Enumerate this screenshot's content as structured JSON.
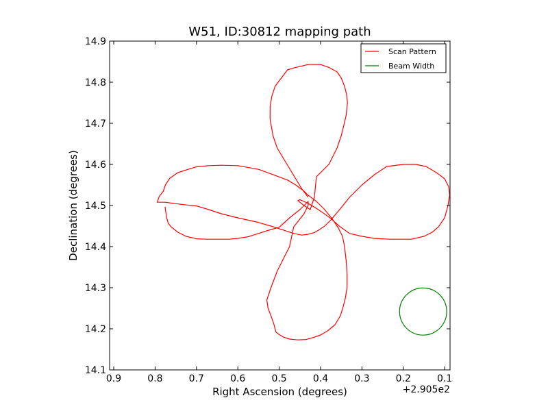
{
  "chart_data": {
    "type": "line",
    "title": "W51, ID:30812 mapping path",
    "xlabel": "Right Ascension (degrees)",
    "ylabel": "Declination (degrees)",
    "x_offset_label": "+2.905e2",
    "xlim": [
      0.91,
      0.087
    ],
    "ylim": [
      14.1,
      14.9
    ],
    "x_inverted": true,
    "x_ticks": [
      0.9,
      0.8,
      0.7,
      0.6,
      0.5,
      0.4,
      0.3,
      0.2,
      0.1
    ],
    "x_tick_labels": [
      "0.9",
      "0.8",
      "0.7",
      "0.6",
      "0.5",
      "0.4",
      "0.3",
      "0.2",
      "0.1"
    ],
    "y_ticks": [
      14.1,
      14.2,
      14.3,
      14.4,
      14.5,
      14.6,
      14.7,
      14.8,
      14.9
    ],
    "y_tick_labels": [
      "14.1",
      "14.2",
      "14.3",
      "14.4",
      "14.5",
      "14.6",
      "14.7",
      "14.8",
      "14.9"
    ],
    "grid": false,
    "legend_position": "top-right",
    "series": [
      {
        "name": "Scan Pattern",
        "color": "#ff0000",
        "x": [
          0.776,
          0.772,
          0.768,
          0.76,
          0.745,
          0.725,
          0.7,
          0.675,
          0.65,
          0.62,
          0.6,
          0.575,
          0.55,
          0.525,
          0.5,
          0.475,
          0.45,
          0.43,
          0.43,
          0.44,
          0.45,
          0.465,
          0.475,
          0.49,
          0.505,
          0.52,
          0.53,
          0.527,
          0.52,
          0.513,
          0.51,
          0.508,
          0.5,
          0.49,
          0.475,
          0.455,
          0.435,
          0.42,
          0.4,
          0.383,
          0.365,
          0.352,
          0.345,
          0.34,
          0.336,
          0.336,
          0.338,
          0.342,
          0.347,
          0.357,
          0.37,
          0.39,
          0.41,
          0.43,
          0.44,
          0.46,
          0.48,
          0.52,
          0.55,
          0.6,
          0.64,
          0.67,
          0.7,
          0.72,
          0.745,
          0.765,
          0.775,
          0.78,
          0.79,
          0.795,
          0.785,
          0.775,
          0.755,
          0.73,
          0.7,
          0.67,
          0.64,
          0.6,
          0.555,
          0.52,
          0.495,
          0.48,
          0.465,
          0.445,
          0.43,
          0.415,
          0.405,
          0.39,
          0.375,
          0.35,
          0.33,
          0.3,
          0.27,
          0.24,
          0.2,
          0.17,
          0.145,
          0.12,
          0.1,
          0.09,
          0.088,
          0.092,
          0.1,
          0.115,
          0.13,
          0.15,
          0.18,
          0.21,
          0.235,
          0.27,
          0.3,
          0.33,
          0.355,
          0.375,
          0.395,
          0.41,
          0.43,
          0.44,
          0.45,
          0.455,
          0.44,
          0.425,
          0.415,
          0.41,
          0.38,
          0.36,
          0.35,
          0.345,
          0.338,
          0.335,
          0.337,
          0.342,
          0.35,
          0.36,
          0.38,
          0.4,
          0.43,
          0.46,
          0.48,
          0.495,
          0.51,
          0.518,
          0.522,
          0.522,
          0.515,
          0.505,
          0.49,
          0.475,
          0.46,
          0.445,
          0.43
        ],
        "y": [
          14.497,
          14.47,
          14.456,
          14.447,
          14.435,
          14.425,
          14.419,
          14.418,
          14.418,
          14.418,
          14.42,
          14.424,
          14.432,
          14.44,
          14.447,
          14.47,
          14.49,
          14.51,
          14.5,
          14.48,
          14.467,
          14.448,
          14.4,
          14.37,
          14.34,
          14.3,
          14.27,
          14.25,
          14.232,
          14.212,
          14.2,
          14.192,
          14.186,
          14.18,
          14.175,
          14.173,
          14.174,
          14.178,
          14.185,
          14.195,
          14.21,
          14.232,
          14.255,
          14.275,
          14.3,
          14.335,
          14.365,
          14.4,
          14.425,
          14.445,
          14.465,
          14.49,
          14.51,
          14.525,
          14.535,
          14.55,
          14.562,
          14.577,
          14.588,
          14.597,
          14.598,
          14.597,
          14.594,
          14.588,
          14.58,
          14.566,
          14.55,
          14.535,
          14.522,
          14.508,
          14.508,
          14.508,
          14.505,
          14.502,
          14.499,
          14.49,
          14.48,
          14.47,
          14.46,
          14.45,
          14.442,
          14.437,
          14.432,
          14.428,
          14.43,
          14.434,
          14.44,
          14.45,
          14.465,
          14.495,
          14.52,
          14.55,
          14.575,
          14.595,
          14.6,
          14.6,
          14.595,
          14.58,
          14.565,
          14.545,
          14.525,
          14.5,
          14.47,
          14.448,
          14.435,
          14.425,
          14.418,
          14.418,
          14.418,
          14.42,
          14.425,
          14.432,
          14.45,
          14.468,
          14.483,
          14.493,
          14.505,
          14.51,
          14.514,
          14.512,
          14.5,
          14.49,
          14.52,
          14.57,
          14.6,
          14.64,
          14.67,
          14.69,
          14.72,
          14.75,
          14.77,
          14.79,
          14.81,
          14.825,
          14.836,
          14.843,
          14.843,
          14.836,
          14.83,
          14.81,
          14.79,
          14.765,
          14.74,
          14.71,
          14.67,
          14.64,
          14.615,
          14.59,
          14.565,
          14.54,
          14.52
        ]
      }
    ],
    "shapes": [
      {
        "name": "Beam Width",
        "type": "circle",
        "color": "#008000",
        "center_x": 0.152,
        "center_y": 14.242,
        "radius_x": 0.057
      }
    ],
    "legend": [
      {
        "label": "Scan Pattern",
        "color": "#ff0000"
      },
      {
        "label": "Beam Width",
        "color": "#008000"
      }
    ]
  }
}
